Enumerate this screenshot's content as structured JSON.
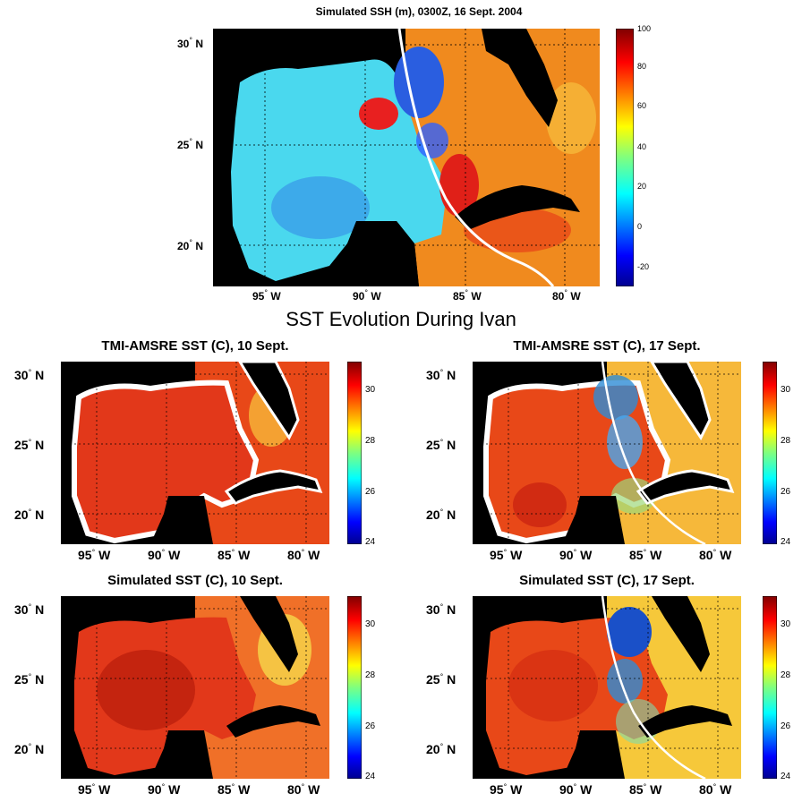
{
  "top_panel": {
    "title": "Simulated SSH (m), 0300Z, 16 Sept. 2004",
    "lat_labels": [
      "30",
      "25",
      "20"
    ],
    "lat_suffix": "N",
    "lon_labels": [
      "95",
      "90",
      "85",
      "80"
    ],
    "lon_suffix": "W",
    "colorbar_ticks": [
      "100",
      "80",
      "60",
      "40",
      "20",
      "0",
      "-20"
    ]
  },
  "section_title": "SST Evolution During Ivan",
  "panels": [
    {
      "title": "TMI-AMSRE SST (C), 10 Sept."
    },
    {
      "title": "TMI-AMSRE SST (C), 17 Sept."
    },
    {
      "title": "Simulated SST (C), 10 Sept."
    },
    {
      "title": "Simulated SST (C), 17 Sept."
    }
  ],
  "sst_lat_labels": [
    "30",
    "25",
    "20"
  ],
  "sst_lon_labels": [
    "95",
    "90",
    "85",
    "80"
  ],
  "sst_colorbar_ticks": [
    "30",
    "28",
    "26",
    "24"
  ],
  "colors": {
    "land": "#000000",
    "gulf_ssh": "#4ad8ee",
    "carib_ssh": "#f08a1e",
    "sst_warm": "#e2381a",
    "sst_cool": "#2e8cd6",
    "track": "#ffffff"
  }
}
